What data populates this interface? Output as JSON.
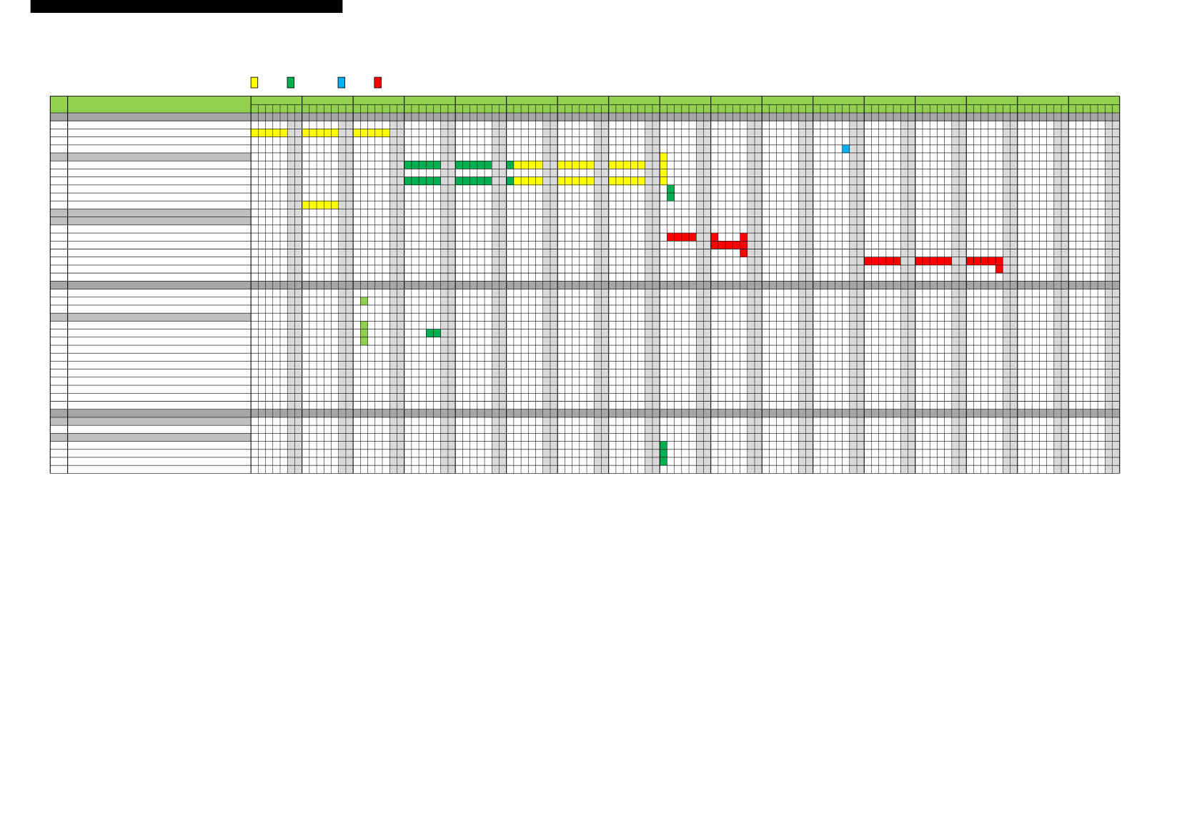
{
  "legend": [
    {
      "color": "#ffff00"
    },
    {
      "color": "#00b050"
    },
    {
      "color": "#00b0f0"
    },
    {
      "color": "#ff0000"
    }
  ],
  "weeks": 17,
  "days_per_week": 7,
  "row_count": 45,
  "section_rows": [
    0,
    21,
    37
  ],
  "group_rows": [
    5,
    12,
    13,
    25,
    38,
    40
  ],
  "bars": [
    {
      "row": 2,
      "start_day": 0,
      "end_day": 4,
      "rows": 1,
      "color": "#ffff00"
    },
    {
      "row": 2,
      "start_day": 7,
      "end_day": 11,
      "rows": 1,
      "color": "#ffff00"
    },
    {
      "row": 2,
      "start_day": 14,
      "end_day": 18,
      "rows": 1,
      "color": "#ffff00"
    },
    {
      "row": 4,
      "start_day": 81,
      "end_day": 81,
      "rows": 1,
      "color": "#00b0f0"
    },
    {
      "row": 6,
      "start_day": 21,
      "end_day": 25,
      "rows": 1,
      "color": "#00b050"
    },
    {
      "row": 6,
      "start_day": 28,
      "end_day": 32,
      "rows": 1,
      "color": "#00b050"
    },
    {
      "row": 6,
      "start_day": 35,
      "end_day": 35,
      "rows": 1,
      "color": "#00b050"
    },
    {
      "row": 6,
      "start_day": 36,
      "end_day": 39,
      "rows": 1,
      "color": "#ffff00"
    },
    {
      "row": 6,
      "start_day": 42,
      "end_day": 46,
      "rows": 1,
      "color": "#ffff00"
    },
    {
      "row": 6,
      "start_day": 49,
      "end_day": 53,
      "rows": 1,
      "color": "#ffff00"
    },
    {
      "row": 8,
      "start_day": 21,
      "end_day": 25,
      "rows": 1,
      "color": "#00b050"
    },
    {
      "row": 8,
      "start_day": 28,
      "end_day": 32,
      "rows": 1,
      "color": "#00b050"
    },
    {
      "row": 8,
      "start_day": 35,
      "end_day": 35,
      "rows": 1,
      "color": "#00b050"
    },
    {
      "row": 8,
      "start_day": 36,
      "end_day": 39,
      "rows": 1,
      "color": "#ffff00"
    },
    {
      "row": 8,
      "start_day": 42,
      "end_day": 46,
      "rows": 1,
      "color": "#ffff00"
    },
    {
      "row": 8,
      "start_day": 49,
      "end_day": 53,
      "rows": 1,
      "color": "#ffff00"
    },
    {
      "row": 5,
      "start_day": 56,
      "end_day": 56,
      "rows": 4,
      "color": "#ffff00"
    },
    {
      "row": 9,
      "start_day": 57,
      "end_day": 57,
      "rows": 2,
      "color": "#00b050"
    },
    {
      "row": 11,
      "start_day": 7,
      "end_day": 11,
      "rows": 1,
      "color": "#ffff00"
    },
    {
      "row": 15,
      "start_day": 57,
      "end_day": 60,
      "rows": 1,
      "color": "#ff0000"
    },
    {
      "row": 15,
      "start_day": 63,
      "end_day": 63,
      "rows": 2,
      "color": "#ff0000"
    },
    {
      "row": 16,
      "start_day": 63,
      "end_day": 67,
      "rows": 1,
      "color": "#ff0000"
    },
    {
      "row": 15,
      "start_day": 67,
      "end_day": 67,
      "rows": 3,
      "color": "#ff0000"
    },
    {
      "row": 18,
      "start_day": 84,
      "end_day": 88,
      "rows": 1,
      "color": "#ff0000"
    },
    {
      "row": 18,
      "start_day": 91,
      "end_day": 95,
      "rows": 1,
      "color": "#ff0000"
    },
    {
      "row": 18,
      "start_day": 98,
      "end_day": 102,
      "rows": 1,
      "color": "#ff0000"
    },
    {
      "row": 18,
      "start_day": 102,
      "end_day": 102,
      "rows": 2,
      "color": "#ff0000"
    },
    {
      "row": 23,
      "start_day": 15,
      "end_day": 15,
      "rows": 1,
      "color": "#92d050"
    },
    {
      "row": 26,
      "start_day": 15,
      "end_day": 15,
      "rows": 3,
      "color": "#92d050"
    },
    {
      "row": 27,
      "start_day": 24,
      "end_day": 25,
      "rows": 1,
      "color": "#00b050"
    },
    {
      "row": 41,
      "start_day": 56,
      "end_day": 56,
      "rows": 3,
      "color": "#00b050"
    }
  ]
}
